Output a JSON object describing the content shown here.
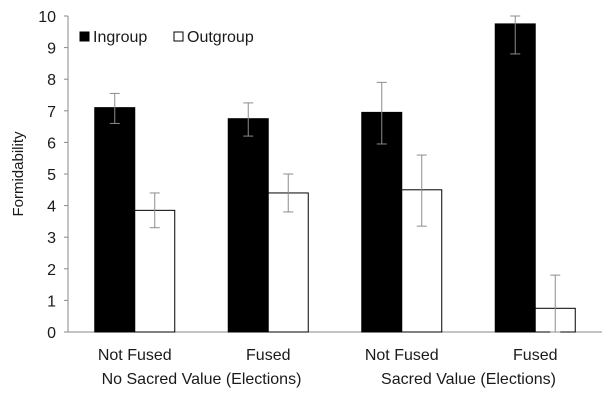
{
  "chart_data": {
    "type": "bar",
    "ylabel": "Formidability",
    "ylim": [
      0,
      10
    ],
    "yticks": [
      0,
      1,
      2,
      3,
      4,
      5,
      6,
      7,
      8,
      9,
      10
    ],
    "categories": [
      "Not Fused",
      "Fused",
      "Not Fused",
      "Fused"
    ],
    "groups": [
      {
        "label": "No Sacred Value (Elections)",
        "categories": [
          0,
          1
        ]
      },
      {
        "label": "Sacred Value (Elections)",
        "categories": [
          2,
          3
        ]
      }
    ],
    "series": [
      {
        "name": "Ingroup",
        "color": "#000000",
        "values": [
          7.1,
          6.75,
          6.95,
          9.75
        ],
        "error": [
          [
            6.6,
            7.55
          ],
          [
            6.2,
            7.25
          ],
          [
            5.95,
            7.9
          ],
          [
            8.8,
            10.0
          ]
        ]
      },
      {
        "name": "Outgroup",
        "color": "#ffffff",
        "values": [
          3.85,
          4.4,
          4.5,
          0.75
        ],
        "error": [
          [
            3.3,
            4.4
          ],
          [
            3.8,
            5.0
          ],
          [
            3.35,
            5.6
          ],
          [
            0.0,
            1.8
          ]
        ]
      }
    ],
    "legend": "top-left",
    "grid": false
  }
}
